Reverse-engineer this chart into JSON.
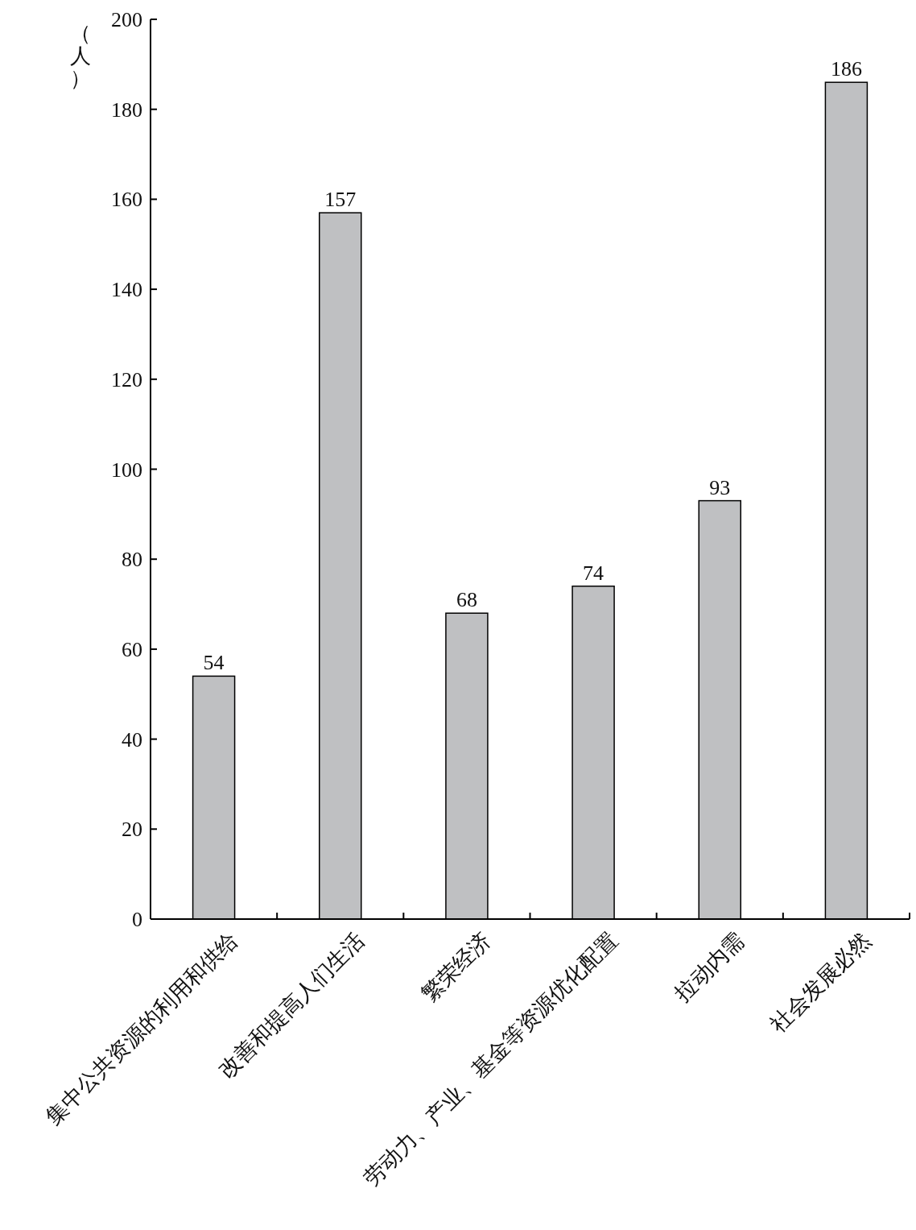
{
  "chart_data": {
    "type": "bar",
    "ylabel": "（人）",
    "categories": [
      "集中公共资源的利用和供给",
      "改善和提高人们生活",
      "繁荣经济",
      "劳动力、产业、基金等资源优化配置",
      "拉动内需",
      "社会发展必然"
    ],
    "values": [
      54,
      157,
      68,
      74,
      93,
      186
    ],
    "color": "#bfc0c2",
    "ylim": [
      0,
      200
    ],
    "yticks": [
      0,
      20,
      40,
      60,
      80,
      100,
      120,
      140,
      160,
      180,
      200
    ],
    "data_labels": true,
    "grid": false
  }
}
